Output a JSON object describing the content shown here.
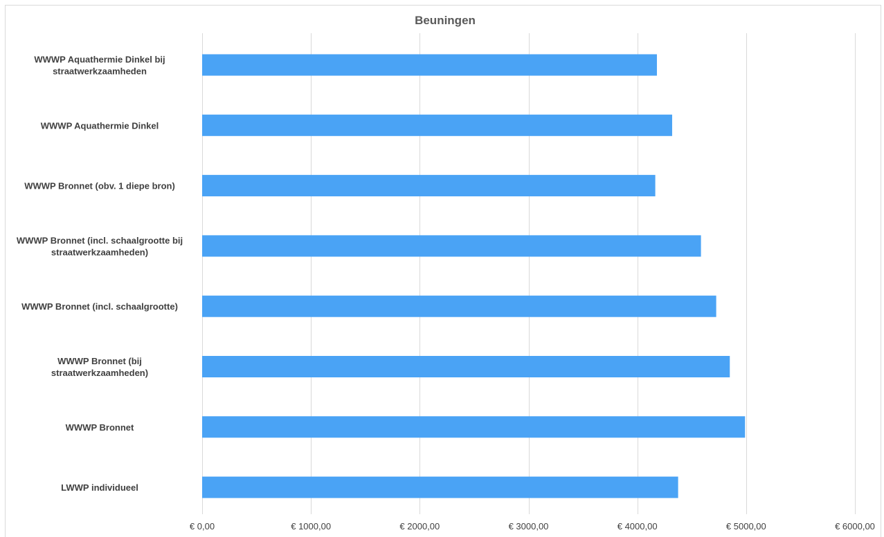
{
  "chart_data": {
    "type": "bar",
    "orientation": "horizontal",
    "title": "Beuningen",
    "xlabel": "",
    "ylabel": "",
    "xlim": [
      0,
      6000
    ],
    "x_ticks": [
      0,
      1000,
      2000,
      3000,
      4000,
      5000,
      6000
    ],
    "x_tick_labels": [
      "€ 0,00",
      "€ 1000,00",
      "€ 2000,00",
      "€ 3000,00",
      "€ 4000,00",
      "€ 5000,00",
      "€ 6000,00"
    ],
    "grid": true,
    "legend": "none",
    "bar_color": "#4aa3f5",
    "categories": [
      "WWWP Aquathermie Dinkel bij straatwerkzaamheden",
      "WWWP Aquathermie Dinkel",
      "WWWP Bronnet (obv. 1 diepe bron)",
      "WWWP Bronnet (incl. schaalgrootte bij straatwerkzaamheden)",
      "WWWP Bronnet (incl. schaalgrootte)",
      "WWWP Bronnet (bij straatwerkzaamheden)",
      "WWWP Bronnet",
      "LWWP individueel"
    ],
    "category_label_lines": [
      [
        "WWWP Aquathermie Dinkel bij",
        "straatwerkzaamheden"
      ],
      [
        "WWWP Aquathermie Dinkel"
      ],
      [
        "WWWP Bronnet (obv. 1 diepe bron)"
      ],
      [
        "WWWP Bronnet (incl. schaalgrootte bij",
        "straatwerkzaamheden)"
      ],
      [
        "WWWP Bronnet (incl. schaalgrootte)"
      ],
      [
        "WWWP Bronnet (bij",
        "straatwerkzaamheden)"
      ],
      [
        "WWWP Bronnet"
      ],
      [
        "LWWP individueel"
      ]
    ],
    "values": [
      4180,
      4320,
      4165,
      4585,
      4725,
      4850,
      4990,
      4375
    ]
  }
}
